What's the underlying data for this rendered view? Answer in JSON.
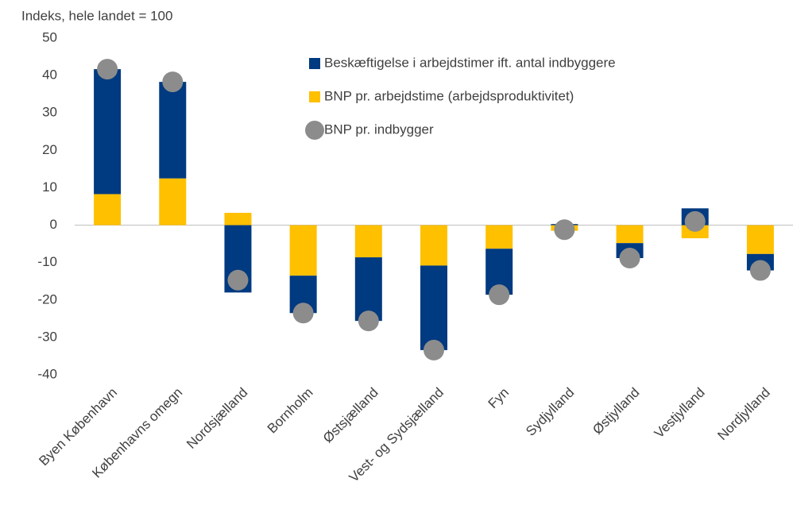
{
  "chart_data": {
    "type": "bar",
    "stacked": true,
    "ylabel": "Indeks, hele landet = 100",
    "categories": [
      "Byen København",
      "Københavns omegn",
      "Nordsjælland",
      "Bornholm",
      "Østsjælland",
      "Vest- og Sydsjælland",
      "Fyn",
      "Sydjylland",
      "Østjylland",
      "Vestjylland",
      "Nordjylland"
    ],
    "series": [
      {
        "name": "Beskæftigelse i arbejdstimer ift. antal indbyggere",
        "color": "#003a80",
        "type": "bar",
        "values": [
          33.4,
          25.8,
          -18,
          -10,
          -17,
          -22.6,
          -12.3,
          0.3,
          -4,
          4.5,
          -4.4
        ]
      },
      {
        "name": "BNP pr. arbejdstime (arbejdsproduktivitet)",
        "color": "#ffc000",
        "type": "bar",
        "values": [
          8.3,
          12.5,
          3.3,
          -13.5,
          -8.6,
          -10.8,
          -6.3,
          -1.5,
          -4.8,
          -3.5,
          -7.7
        ]
      },
      {
        "name": "BNP pr. indbygger",
        "color": "#8c8c8c",
        "type": "scatter",
        "values": [
          41.7,
          38.3,
          -14.7,
          -23.5,
          -25.6,
          -33.4,
          -18.6,
          -1.2,
          -8.8,
          1.0,
          -12.1
        ]
      }
    ],
    "ylim": [
      -40,
      50
    ],
    "yticks": [
      -40,
      -30,
      -20,
      -10,
      0,
      10,
      20,
      30,
      40,
      50
    ]
  }
}
